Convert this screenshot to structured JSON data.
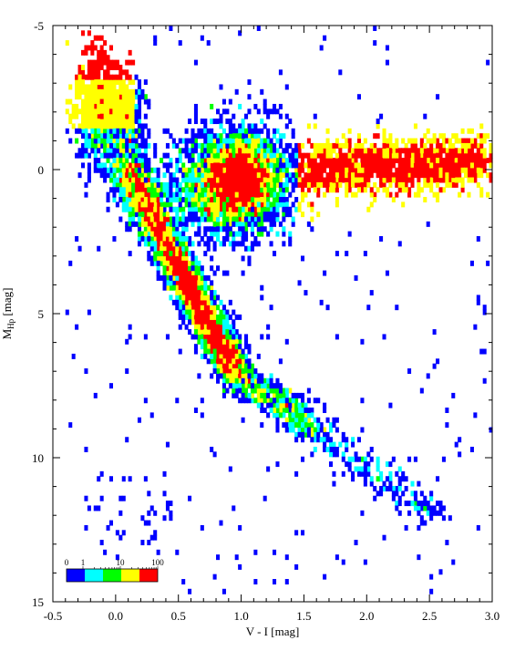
{
  "chart_data": {
    "type": "heatmap",
    "xlabel": "V - I [mag]",
    "ylabel_main": "M",
    "ylabel_sub": "Hp",
    "ylabel_unit": " [mag]",
    "xlim": [
      -0.5,
      3.0
    ],
    "ylim": [
      15,
      -5
    ],
    "y_inverted": true,
    "x_ticks": [
      {
        "value": -0.5,
        "label": "-0.5"
      },
      {
        "value": 0.0,
        "label": "0.0"
      },
      {
        "value": 0.5,
        "label": "0.5"
      },
      {
        "value": 1.0,
        "label": "1.0"
      },
      {
        "value": 1.5,
        "label": "1.5"
      },
      {
        "value": 2.0,
        "label": "2.0"
      },
      {
        "value": 2.5,
        "label": "2.5"
      },
      {
        "value": 3.0,
        "label": "3.0"
      }
    ],
    "y_ticks": [
      {
        "value": -5,
        "label": "-5"
      },
      {
        "value": 0,
        "label": "0"
      },
      {
        "value": 5,
        "label": "5"
      },
      {
        "value": 10,
        "label": "10"
      },
      {
        "value": 15,
        "label": "15"
      }
    ],
    "colorbar": {
      "levels": [
        "#0000ff",
        "#00ffff",
        "#00ff00",
        "#ffff00",
        "#ff0000"
      ],
      "labels": [
        {
          "value": 0,
          "label": "0"
        },
        {
          "value": 1,
          "label": "1"
        },
        {
          "value": 10,
          "label": "10"
        },
        {
          "value": 100,
          "label": "100"
        }
      ]
    },
    "bin_size": {
      "x": 0.025,
      "y": 0.17
    },
    "density_regions": [
      {
        "region": "red clump / giant branch",
        "x_range": [
          1.5,
          3.0
        ],
        "y_range": [
          -1.5,
          1.5
        ],
        "level": "red"
      },
      {
        "region": "upper main sequence",
        "x_range": [
          -0.25,
          0.3
        ],
        "y_range": [
          -3.5,
          0.5
        ],
        "level": "yellow"
      },
      {
        "region": "main sequence core",
        "x_range": [
          0.2,
          1.0
        ],
        "y_range": [
          0.5,
          7.0
        ],
        "level": "cyan"
      },
      {
        "region": "subgiant / giant clump",
        "x_range": [
          0.8,
          1.5
        ],
        "y_range": [
          -1.5,
          2.5
        ],
        "level": "cyan"
      },
      {
        "region": "lower main sequence",
        "x_range": [
          1.0,
          2.9
        ],
        "y_range": [
          6.5,
          12.5
        ],
        "level": "blue"
      }
    ]
  }
}
